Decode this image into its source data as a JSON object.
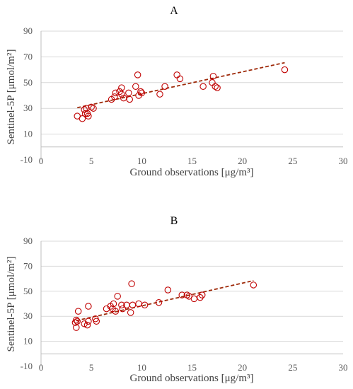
{
  "chart_data": [
    {
      "type": "scatter",
      "title": "A",
      "xlabel": "Ground observations [μg/m³]",
      "ylabel": "Sentinel-5P [μmol/m²]",
      "xlim": [
        0,
        30
      ],
      "ylim": [
        -10,
        90
      ],
      "xticks": [
        "0",
        "5",
        "10",
        "15",
        "20",
        "25",
        "30"
      ],
      "yticks": [
        "-10",
        "10",
        "30",
        "50",
        "70",
        "90"
      ],
      "trendline": {
        "x": [
          3.6,
          24.2
        ],
        "y": [
          30.5,
          65.5
        ]
      },
      "points": [
        [
          3.6,
          24
        ],
        [
          4.1,
          22
        ],
        [
          4.3,
          29
        ],
        [
          4.4,
          26
        ],
        [
          4.5,
          30
        ],
        [
          4.6,
          26
        ],
        [
          4.7,
          24
        ],
        [
          5.0,
          31
        ],
        [
          5.2,
          30
        ],
        [
          7.0,
          37
        ],
        [
          7.3,
          39
        ],
        [
          7.4,
          42
        ],
        [
          7.8,
          43
        ],
        [
          8.0,
          41
        ],
        [
          8.0,
          46
        ],
        [
          8.2,
          38
        ],
        [
          8.7,
          42
        ],
        [
          8.8,
          37
        ],
        [
          9.4,
          47
        ],
        [
          9.6,
          56
        ],
        [
          9.7,
          40
        ],
        [
          9.9,
          43
        ],
        [
          10.0,
          42
        ],
        [
          11.8,
          41
        ],
        [
          12.3,
          47
        ],
        [
          13.5,
          56
        ],
        [
          13.8,
          53
        ],
        [
          16.1,
          47
        ],
        [
          17.0,
          50
        ],
        [
          17.1,
          55
        ],
        [
          17.3,
          47
        ],
        [
          17.5,
          46
        ],
        [
          24.2,
          60
        ]
      ]
    },
    {
      "type": "scatter",
      "title": "B",
      "xlabel": "Ground observations [μg/m³]",
      "ylabel": "Sentinel-5P [μmol/m²]",
      "xlim": [
        0,
        30
      ],
      "ylim": [
        -10,
        90
      ],
      "xticks": [
        "0",
        "5",
        "10",
        "15",
        "20",
        "25",
        "30"
      ],
      "yticks": [
        "-10",
        "10",
        "30",
        "50",
        "70",
        "90"
      ],
      "trendline": {
        "x": [
          3.5,
          21.1
        ],
        "y": [
          26.5,
          58.5
        ]
      },
      "points": [
        [
          3.4,
          25
        ],
        [
          3.5,
          21
        ],
        [
          3.5,
          27
        ],
        [
          3.6,
          26
        ],
        [
          3.7,
          34
        ],
        [
          4.3,
          24
        ],
        [
          4.6,
          23
        ],
        [
          4.7,
          26
        ],
        [
          4.7,
          38
        ],
        [
          5.4,
          28
        ],
        [
          5.5,
          26
        ],
        [
          6.5,
          36
        ],
        [
          6.9,
          38
        ],
        [
          7.1,
          36
        ],
        [
          7.2,
          40
        ],
        [
          7.4,
          34
        ],
        [
          7.6,
          46
        ],
        [
          8.0,
          39
        ],
        [
          8.1,
          36
        ],
        [
          8.5,
          39
        ],
        [
          8.9,
          33
        ],
        [
          9.0,
          56
        ],
        [
          9.1,
          39
        ],
        [
          9.7,
          40
        ],
        [
          10.3,
          39
        ],
        [
          11.7,
          41
        ],
        [
          12.6,
          51
        ],
        [
          14.0,
          47
        ],
        [
          14.5,
          47
        ],
        [
          14.7,
          46
        ],
        [
          15.2,
          44
        ],
        [
          15.8,
          45
        ],
        [
          16.0,
          47
        ],
        [
          21.1,
          55
        ]
      ]
    }
  ]
}
